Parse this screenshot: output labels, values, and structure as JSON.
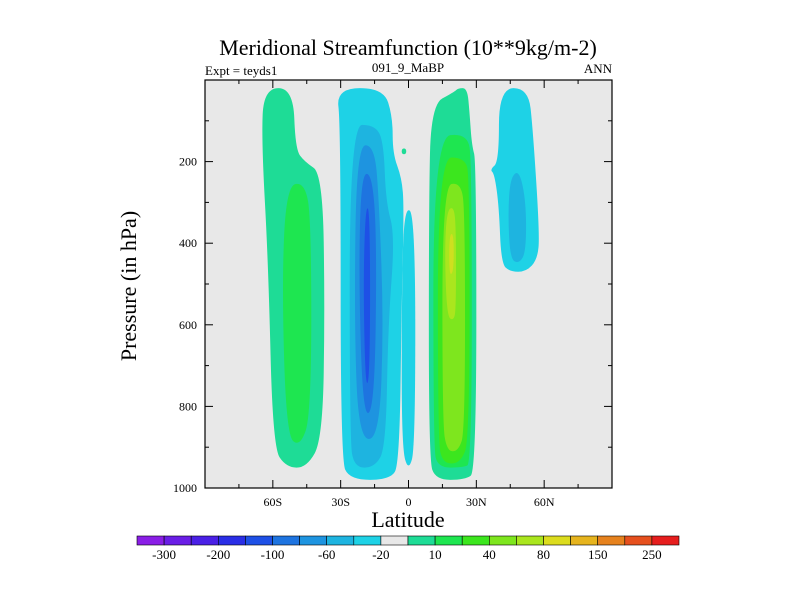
{
  "chart_data": {
    "type": "heatmap",
    "title": "Meridional Streamfunction (10**9kg/m-2)",
    "subtitle_left": "Expt = teyds1",
    "subtitle_center": "091_9_MaBP",
    "subtitle_right": "ANN",
    "xlabel": "Latitude",
    "ylabel": "Pressure (in hPa)",
    "x_ticks": [
      {
        "value": -60,
        "label": "60S"
      },
      {
        "value": -30,
        "label": "30S"
      },
      {
        "value": 0,
        "label": "0"
      },
      {
        "value": 30,
        "label": "30N"
      },
      {
        "value": 60,
        "label": "60N"
      }
    ],
    "y_ticks": [
      {
        "value": 200,
        "label": "200"
      },
      {
        "value": 400,
        "label": "400"
      },
      {
        "value": 600,
        "label": "600"
      },
      {
        "value": 800,
        "label": "800"
      },
      {
        "value": 1000,
        "label": "1000"
      }
    ],
    "xlim": [
      -90,
      90
    ],
    "ylim": [
      1000,
      0
    ],
    "background_color": "#e8e8e8",
    "colorbar": {
      "levels": [
        "-300",
        "-200",
        "-100",
        "-60",
        "-20",
        "10",
        "40",
        "80",
        "150",
        "250"
      ],
      "colors": [
        "#8a1ee6",
        "#6a1ee6",
        "#4a20e6",
        "#2a2ee6",
        "#1e50e6",
        "#1e74e0",
        "#1e94e0",
        "#1eb4e0",
        "#1ed2e6",
        "#e8e8e8",
        "#1edc96",
        "#1ee650",
        "#3ce61e",
        "#7ee61e",
        "#aae61e",
        "#dcdc1e",
        "#e6b41e",
        "#e6821e",
        "#e6501e",
        "#e61e1e"
      ]
    },
    "contours": [
      {
        "name": "nh-cell-outer",
        "color": "#1ed2e6",
        "points": [
          [
            40,
            20
          ],
          [
            53,
            20
          ],
          [
            55,
            120
          ],
          [
            58,
            380
          ],
          [
            57,
            440
          ],
          [
            52,
            470
          ],
          [
            45,
            470
          ],
          [
            41,
            450
          ],
          [
            40,
            310
          ],
          [
            38,
            230
          ],
          [
            36,
            220
          ],
          [
            40,
            200
          ]
        ]
      },
      {
        "name": "nh-cell-inner",
        "color": "#1eb4e0",
        "points": [
          [
            45,
            240
          ],
          [
            49,
            220
          ],
          [
            52,
            300
          ],
          [
            52,
            420
          ],
          [
            49,
            450
          ],
          [
            45,
            440
          ],
          [
            44,
            330
          ]
        ]
      },
      {
        "name": "sh-hadley-outer",
        "color": "#1ed2e6",
        "points": [
          [
            -32,
            20
          ],
          [
            -11,
            20
          ],
          [
            -7,
            90
          ],
          [
            -7,
            180
          ],
          [
            -3,
            240
          ],
          [
            -2,
            310
          ],
          [
            -3,
            540
          ],
          [
            -4,
            940
          ],
          [
            -8,
            980
          ],
          [
            -26,
            980
          ],
          [
            -30,
            930
          ],
          [
            -30,
            110
          ]
        ]
      },
      {
        "name": "sh-hadley-l2",
        "color": "#1eb4e0",
        "points": [
          [
            -26,
            110
          ],
          [
            -15,
            110
          ],
          [
            -11,
            150
          ],
          [
            -10,
            300
          ],
          [
            -6,
            380
          ],
          [
            -9,
            600
          ],
          [
            -10,
            900
          ],
          [
            -15,
            950
          ],
          [
            -24,
            950
          ],
          [
            -26,
            880
          ]
        ]
      },
      {
        "name": "sh-hadley-l3",
        "color": "#1e94e0",
        "points": [
          [
            -23,
            160
          ],
          [
            -15,
            160
          ],
          [
            -13,
            300
          ],
          [
            -11,
            600
          ],
          [
            -13,
            880
          ],
          [
            -22,
            880
          ],
          [
            -24,
            600
          ]
        ]
      },
      {
        "name": "sh-hadley-l4",
        "color": "#1e74e0",
        "points": [
          [
            -21,
            230
          ],
          [
            -16,
            230
          ],
          [
            -14,
            400
          ],
          [
            -15,
            800
          ],
          [
            -20,
            830
          ],
          [
            -22,
            500
          ]
        ]
      },
      {
        "name": "sh-hadley-l5",
        "color": "#1e50e6",
        "points": [
          [
            -19,
            310
          ],
          [
            -17,
            320
          ],
          [
            -17,
            720
          ],
          [
            -19,
            760
          ],
          [
            -20,
            500
          ]
        ]
      },
      {
        "name": "equator-tongue",
        "color": "#1ed2e6",
        "points": [
          [
            -2,
            310
          ],
          [
            3,
            330
          ],
          [
            3,
            900
          ],
          [
            0,
            960
          ],
          [
            -3,
            900
          ],
          [
            -3,
            540
          ]
        ]
      },
      {
        "name": "eq-speck",
        "color": "#1edc96",
        "points": [
          [
            -3,
            168
          ],
          [
            -1,
            168
          ],
          [
            -1,
            182
          ],
          [
            -3,
            182
          ]
        ]
      },
      {
        "name": "sh-ferrel-outer",
        "color": "#1edc96",
        "points": [
          [
            -64,
            20
          ],
          [
            -51,
            20
          ],
          [
            -50,
            170
          ],
          [
            -46,
            200
          ],
          [
            -38,
            230
          ],
          [
            -37,
            560
          ],
          [
            -38,
            880
          ],
          [
            -45,
            950
          ],
          [
            -54,
            950
          ],
          [
            -60,
            900
          ],
          [
            -62,
            450
          ],
          [
            -65,
            150
          ]
        ]
      },
      {
        "name": "sh-ferrel-inner",
        "color": "#1ee650",
        "points": [
          [
            -54,
            260
          ],
          [
            -46,
            250
          ],
          [
            -43,
            340
          ],
          [
            -43,
            820
          ],
          [
            -48,
            900
          ],
          [
            -54,
            870
          ],
          [
            -56,
            500
          ]
        ]
      },
      {
        "name": "nh-hadley-outer",
        "color": "#1edc96",
        "points": [
          [
            10,
            60
          ],
          [
            20,
            30
          ],
          [
            22,
            20
          ],
          [
            26,
            20
          ],
          [
            27,
            80
          ],
          [
            28,
            160
          ],
          [
            30,
            200
          ],
          [
            30,
            960
          ],
          [
            25,
            980
          ],
          [
            12,
            980
          ],
          [
            9,
            930
          ],
          [
            9,
            300
          ]
        ]
      },
      {
        "name": "nh-hadley-l2",
        "color": "#1ee650",
        "points": [
          [
            11,
            140
          ],
          [
            26,
            130
          ],
          [
            28,
            200
          ],
          [
            28,
            940
          ],
          [
            24,
            950
          ],
          [
            13,
            950
          ],
          [
            11,
            900
          ]
        ]
      },
      {
        "name": "nh-hadley-l3",
        "color": "#3ce61e",
        "points": [
          [
            13,
            190
          ],
          [
            25,
            190
          ],
          [
            27,
            240
          ],
          [
            27,
            880
          ],
          [
            23,
            940
          ],
          [
            15,
            940
          ],
          [
            13,
            880
          ]
        ]
      },
      {
        "name": "nh-hadley-l4",
        "color": "#7ee61e",
        "points": [
          [
            15,
            260
          ],
          [
            23,
            250
          ],
          [
            25,
            320
          ],
          [
            25,
            860
          ],
          [
            22,
            910
          ],
          [
            17,
            910
          ],
          [
            15,
            840
          ]
        ]
      },
      {
        "name": "nh-hadley-l5",
        "color": "#aae61e",
        "points": [
          [
            17,
            320
          ],
          [
            20,
            310
          ],
          [
            21,
            360
          ],
          [
            21,
            560
          ],
          [
            20,
            590
          ],
          [
            17,
            580
          ],
          [
            16,
            420
          ]
        ]
      },
      {
        "name": "nh-hadley-l6",
        "color": "#cfdf20",
        "points": [
          [
            18,
            380
          ],
          [
            20,
            375
          ],
          [
            20,
            470
          ],
          [
            18,
            480
          ]
        ]
      }
    ]
  }
}
